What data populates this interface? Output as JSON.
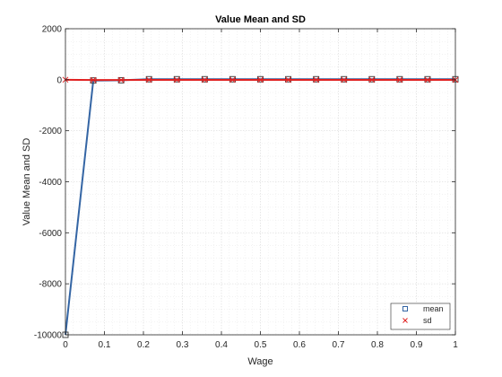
{
  "chart_data": {
    "type": "line",
    "title": "Value Mean and SD",
    "xlabel": "Wage",
    "ylabel": "Value Mean and SD",
    "xlim": [
      0,
      1
    ],
    "ylim": [
      -10000,
      2000
    ],
    "x_ticks": [
      0,
      0.1,
      0.2,
      0.3,
      0.4,
      0.5,
      0.6,
      0.7,
      0.8,
      0.9,
      1
    ],
    "x_tick_labels": [
      "0",
      "0.1",
      "0.2",
      "0.3",
      "0.4",
      "0.5",
      "0.6",
      "0.7",
      "0.8",
      "0.9",
      "1"
    ],
    "y_ticks": [
      -10000,
      -8000,
      -6000,
      -4000,
      -2000,
      0,
      2000
    ],
    "y_tick_labels": [
      "-10000",
      "-8000",
      "-6000",
      "-4000",
      "-2000",
      "0",
      "2000"
    ],
    "grid": true,
    "minor_grid": true,
    "legend_position": "bottom-right",
    "series": [
      {
        "name": "mean",
        "color": "#3465a4",
        "marker": "square",
        "x": [
          0,
          0.0714,
          0.1429,
          0.2143,
          0.2857,
          0.3571,
          0.4286,
          0.5,
          0.5714,
          0.6429,
          0.7143,
          0.7857,
          0.8571,
          0.9286,
          1
        ],
        "y": [
          -10000,
          -30,
          -20,
          20,
          20,
          20,
          20,
          20,
          20,
          20,
          20,
          20,
          20,
          20,
          20
        ]
      },
      {
        "name": "sd",
        "color": "#e02020",
        "marker": "x",
        "x": [
          0,
          0.0714,
          0.1429,
          0.2143,
          0.2857,
          0.3571,
          0.4286,
          0.5,
          0.5714,
          0.6429,
          0.7143,
          0.7857,
          0.8571,
          0.9286,
          1
        ],
        "y": [
          0,
          -10,
          -10,
          -5,
          -5,
          -5,
          -5,
          -5,
          -5,
          -5,
          -5,
          -5,
          -5,
          -5,
          -5
        ]
      }
    ]
  }
}
